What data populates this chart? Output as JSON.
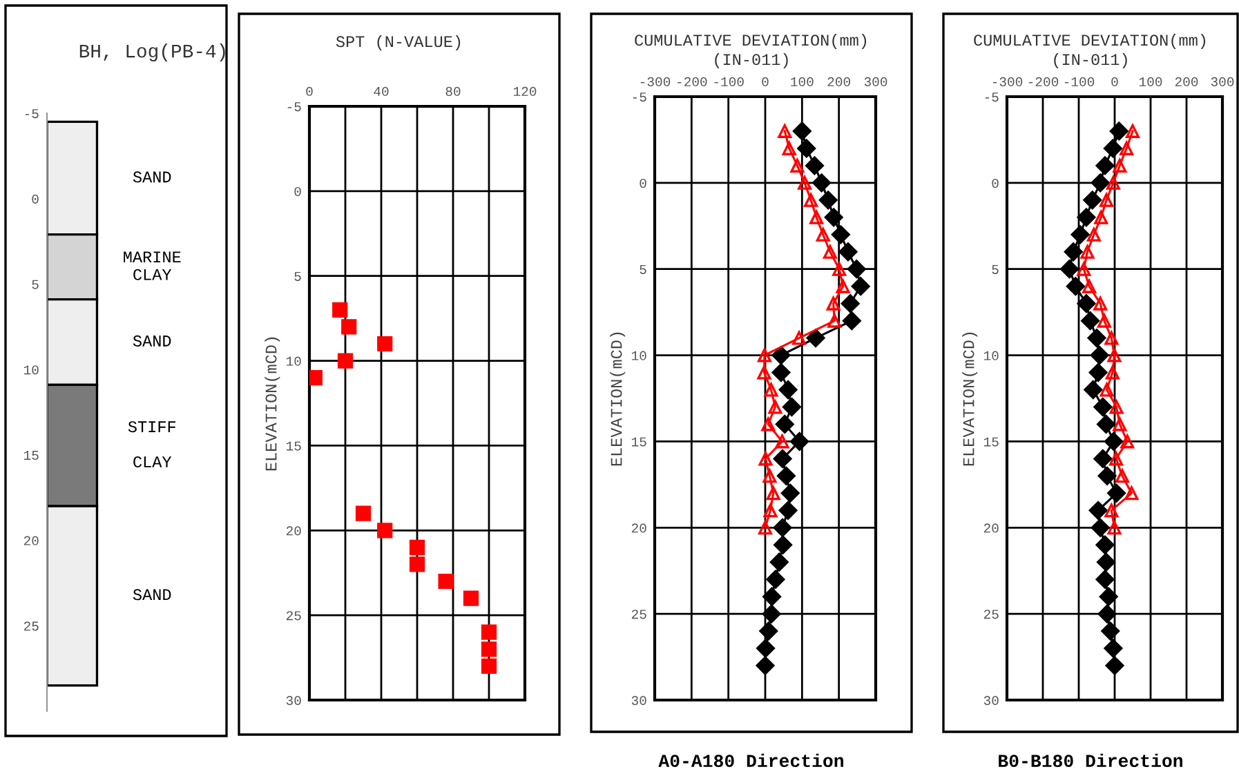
{
  "chart_data": [
    {
      "type": "bar",
      "title": "BH, Log(PB-4)",
      "categories": [
        null
      ],
      "ylim": [
        30,
        -5
      ],
      "yticks": [
        -5,
        0,
        5,
        10,
        15,
        20,
        25
      ],
      "tick_labels": "y",
      "series": [
        {
          "name": "SAND",
          "color": "#eeeeee",
          "base": [
            -4.5
          ],
          "values": [
            6.6
          ]
        },
        {
          "name": "MARINE\nCLAY",
          "color": "#d4d4d4",
          "base": [
            2.1
          ],
          "values": [
            3.8
          ]
        },
        {
          "name": "SAND",
          "color": "#eeeeee",
          "base": [
            5.9
          ],
          "values": [
            5.0
          ]
        },
        {
          "name": "STIFF\n\nCLAY",
          "color": "#7a7a7a",
          "base": [
            10.9
          ],
          "values": [
            7.1
          ]
        },
        {
          "name": "SAND",
          "color": "#eeeeee",
          "base": [
            18.0
          ],
          "values": [
            10.5
          ]
        }
      ]
    },
    {
      "type": "scatter",
      "title": "SPT (N-VALUE)",
      "ylabel": "ELEVATION(mCD)",
      "xlim": [
        0,
        120
      ],
      "xticks": [
        0,
        {
          "value": 20,
          "label": null
        },
        40,
        {
          "value": 60,
          "label": null
        },
        80,
        {
          "value": 100,
          "label": null
        },
        120
      ],
      "ylim": [
        30,
        -5
      ],
      "yticks": [
        -5,
        0,
        5,
        10,
        15,
        20,
        25,
        30
      ],
      "grid": true,
      "marker": "square",
      "series": [
        {
          "color": "#ff0000",
          "x": [
            17,
            22,
            42,
            20,
            3,
            30,
            42,
            60,
            60,
            76,
            90,
            100,
            100,
            100
          ],
          "values": [
            7,
            8,
            9,
            10,
            11,
            19,
            20,
            21,
            22,
            23,
            24,
            26,
            27,
            28
          ]
        }
      ]
    },
    {
      "type": "line",
      "title": "CUMULATIVE DEVIATION(mm)",
      "subtitle": "(IN-011)",
      "ylabel": "ELEVATION(mCD)",
      "annotations": [
        "A0-A180 Direction"
      ],
      "xlim": [
        -300,
        300
      ],
      "xticks": [
        -300,
        -200,
        -100,
        0,
        100,
        200,
        300
      ],
      "ylim": [
        30,
        -5
      ],
      "yticks": [
        -5,
        0,
        5,
        10,
        15,
        20,
        25,
        30
      ],
      "grid": true,
      "line_style": "solid",
      "series": [
        {
          "color": "#000000",
          "marker": "diamond",
          "x": [
            100,
            112,
            134,
            153,
            171,
            186,
            205,
            225,
            248,
            259,
            231,
            235,
            137,
            43,
            43,
            62,
            72,
            53,
            93,
            47,
            57,
            68,
            62,
            47,
            48,
            38,
            28,
            18,
            17,
            9,
            1,
            0
          ],
          "values": [
            -3,
            -2,
            -1,
            0,
            1,
            2,
            3,
            4,
            5,
            6,
            7,
            8,
            9,
            10,
            11,
            12,
            13,
            14,
            15,
            16,
            17,
            18,
            19,
            20,
            21,
            22,
            23,
            24,
            25,
            26,
            27,
            28
          ]
        },
        {
          "color": "#ff0000",
          "marker": "triangle",
          "x": [
            53,
            65,
            87,
            107,
            124,
            139,
            157,
            176,
            201,
            211,
            185,
            188,
            92,
            -2,
            -3,
            16,
            27,
            8,
            46,
            1,
            12,
            22,
            14,
            0
          ],
          "values": [
            -3,
            -2,
            -1,
            0,
            1,
            2,
            3,
            4,
            5,
            6,
            7,
            8,
            9,
            10,
            11,
            12,
            13,
            14,
            15,
            16,
            17,
            18,
            19,
            20
          ]
        }
      ]
    },
    {
      "type": "line",
      "title": "CUMULATIVE DEVIATION(mm)",
      "subtitle": "(IN-011)",
      "ylabel": "ELEVATION(mCD)",
      "annotations": [
        "B0-B180 Direction"
      ],
      "xlim": [
        -300,
        300
      ],
      "xticks": [
        -300,
        -200,
        -100,
        0,
        100,
        200,
        300
      ],
      "ylim": [
        30,
        -5
      ],
      "yticks": [
        -5,
        0,
        5,
        10,
        15,
        20,
        25,
        30
      ],
      "grid": true,
      "line_style": "solid",
      "series": [
        {
          "color": "#000000",
          "marker": "diamond",
          "x": [
            12,
            -5,
            -27,
            -40,
            -62,
            -79,
            -96,
            -115,
            -126,
            -109,
            -79,
            -68,
            -50,
            -42,
            -46,
            -60,
            -33,
            -24,
            -3,
            -33,
            -21,
            5,
            -46,
            -40,
            -27,
            -24,
            -27,
            -17,
            -21,
            -12,
            -4,
            0
          ],
          "values": [
            -3,
            -2,
            -1,
            0,
            1,
            2,
            3,
            4,
            5,
            6,
            7,
            8,
            9,
            10,
            11,
            12,
            13,
            14,
            15,
            16,
            17,
            18,
            19,
            20,
            21,
            22,
            23,
            24,
            25,
            26,
            27,
            28
          ]
        },
        {
          "color": "#ff0000",
          "marker": "triangle",
          "x": [
            50,
            33,
            14,
            -4,
            -23,
            -38,
            -58,
            -76,
            -86,
            -71,
            -40,
            -29,
            -9,
            -1,
            -6,
            -22,
            5,
            14,
            35,
            4,
            21,
            47,
            -9,
            -1
          ],
          "values": [
            -3,
            -2,
            -1,
            0,
            1,
            2,
            3,
            4,
            5,
            6,
            7,
            8,
            9,
            10,
            11,
            12,
            13,
            14,
            15,
            16,
            17,
            18,
            19,
            20
          ]
        }
      ]
    }
  ]
}
